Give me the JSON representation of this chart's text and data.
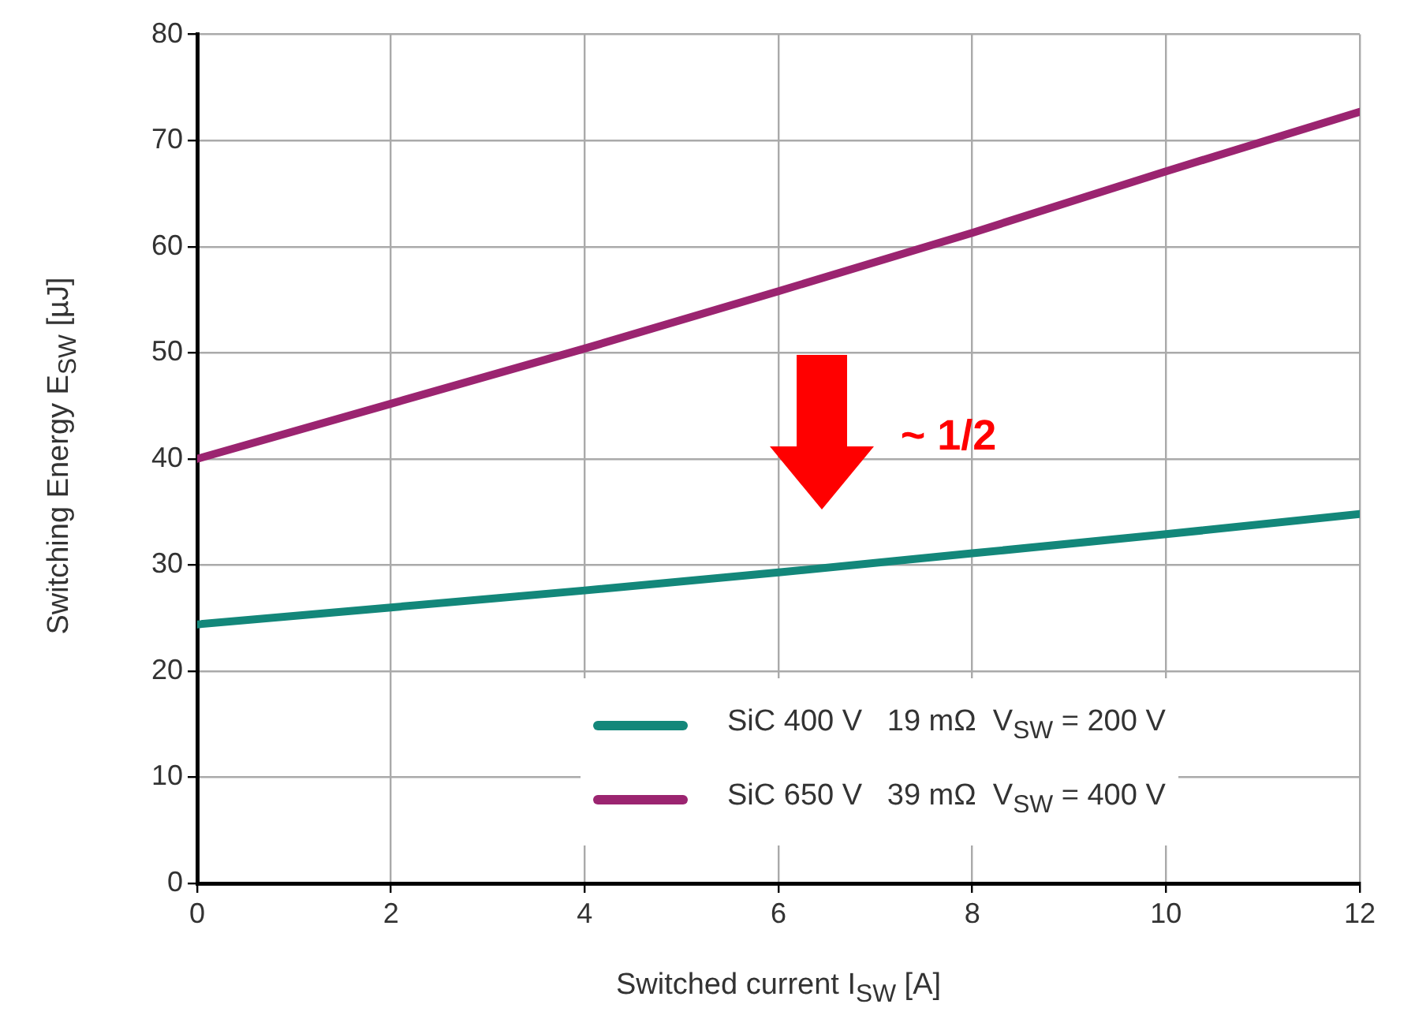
{
  "chart_data": {
    "type": "line",
    "xlabel": "Switched current I$_{SW}$ [A]",
    "ylabel": "Switching Energy E$_{SW}$ [µJ]",
    "x": [
      0,
      2,
      4,
      6,
      8,
      10,
      12
    ],
    "series": [
      {
        "name": "SiC 400 V   19 mΩ  V$_{SW}$ = 200 V",
        "color": "#13877a",
        "values": [
          24.4,
          26,
          27.6,
          29.3,
          31.1,
          32.9,
          34.8
        ]
      },
      {
        "name": "SiC 650 V   39 mΩ  V$_{SW}$ = 400 V",
        "color": "#9b2470",
        "values": [
          40,
          45.2,
          50.4,
          55.8,
          61.3,
          67.1,
          72.7
        ]
      }
    ],
    "xlim": [
      0,
      12
    ],
    "xticks": [
      0,
      2,
      4,
      6,
      8,
      10,
      12
    ],
    "ylim": [
      0,
      80
    ],
    "yticks": [
      0,
      10,
      20,
      30,
      40,
      50,
      60,
      70,
      80
    ],
    "grid": true,
    "legend": "bottom right",
    "marker": "none",
    "line_style": "solid",
    "annotations": [
      "~ 1/2"
    ]
  }
}
